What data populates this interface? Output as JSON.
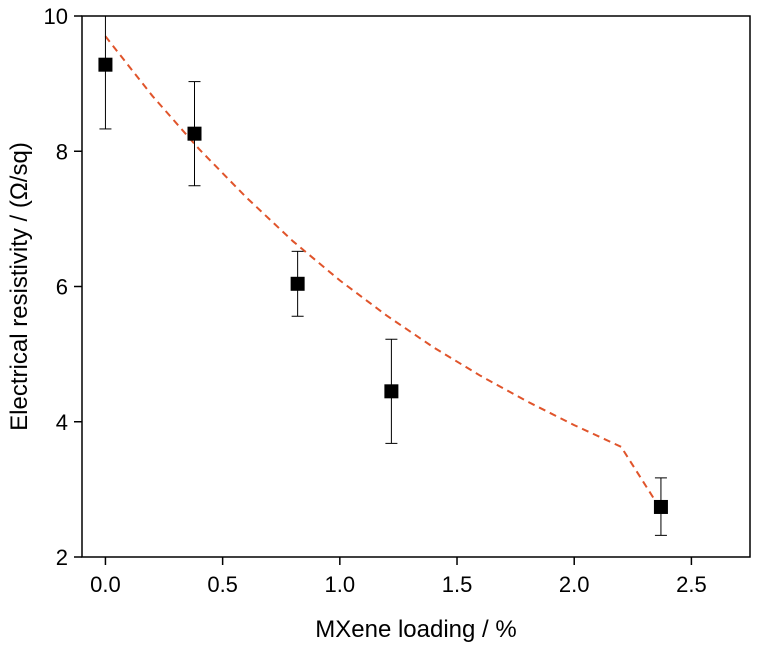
{
  "chart_data": {
    "type": "scatter",
    "xlabel": "MXene loading / %",
    "ylabel": "Electrical resistivity / (Ω/sq)",
    "xlim": [
      -0.1,
      2.75
    ],
    "ylim": [
      2,
      10
    ],
    "xticks": [
      0.0,
      0.5,
      1.0,
      1.5,
      2.0,
      2.5
    ],
    "xtick_labels": [
      "0.0",
      "0.5",
      "1.0",
      "1.5",
      "2.0",
      "2.5"
    ],
    "yticks": [
      2,
      4,
      6,
      8,
      10
    ],
    "ytick_labels": [
      "2",
      "4",
      "6",
      "8",
      "10"
    ],
    "grid": false,
    "series": [
      {
        "marker": "square",
        "color": "#000000",
        "points": [
          {
            "x": 0.0,
            "y": 9.28,
            "err_low": 8.33,
            "err_high": 10.0
          },
          {
            "x": 0.38,
            "y": 8.26,
            "err_low": 7.49,
            "err_high": 9.03
          },
          {
            "x": 0.82,
            "y": 6.04,
            "err_low": 5.56,
            "err_high": 6.52
          },
          {
            "x": 1.22,
            "y": 4.45,
            "err_low": 3.68,
            "err_high": 5.22
          },
          {
            "x": 2.37,
            "y": 2.74,
            "err_low": 2.32,
            "err_high": 3.17
          }
        ]
      }
    ],
    "fit": {
      "style": "dashed",
      "color": "#e0542b",
      "x": [
        0.0,
        0.2,
        0.4,
        0.6,
        0.8,
        1.0,
        1.2,
        1.4,
        1.6,
        1.8,
        2.0,
        2.2,
        2.37
      ],
      "y": [
        9.7,
        8.82,
        8.03,
        7.32,
        6.67,
        6.09,
        5.57,
        5.1,
        4.68,
        4.3,
        3.95,
        3.63,
        2.7
      ]
    }
  }
}
